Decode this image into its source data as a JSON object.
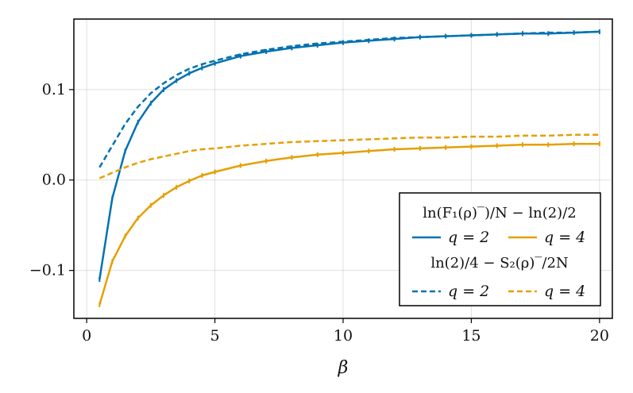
{
  "chart_data": {
    "type": "line",
    "xlabel": "β",
    "ylabel": "",
    "xlim": [
      -0.5,
      20.5
    ],
    "ylim": [
      -0.153,
      0.178
    ],
    "xticks": [
      0,
      5,
      10,
      15,
      20
    ],
    "yticks": [
      -0.1,
      0.0,
      0.1
    ],
    "x_tick_labels": [
      "0",
      "5",
      "10",
      "15",
      "20"
    ],
    "y_tick_labels": [
      "−0.1",
      "0.0",
      "0.1"
    ],
    "grid": true,
    "legend_position": "bottom-right",
    "legend": {
      "groups": [
        {
          "title": "ln(F₁(ρ)‾)/N − ln(2)/2",
          "entries": [
            "q = 2",
            "q = 4"
          ]
        },
        {
          "title": "ln(2)/4 − S₂(ρ)‾/2N",
          "entries": [
            "q = 2",
            "q = 4"
          ]
        }
      ]
    },
    "colors": {
      "q2": "#0072b2",
      "q4": "#e69f00"
    },
    "series": [
      {
        "name": "q = 2",
        "group": 0,
        "style": "solid",
        "color": "#0072b2",
        "x": [
          0.5,
          1,
          1.5,
          2,
          2.5,
          3,
          3.5,
          4,
          4.5,
          5,
          6,
          7,
          8,
          9,
          10,
          11,
          12,
          13,
          14,
          15,
          16,
          17,
          18,
          19,
          20
        ],
        "y": [
          -0.11,
          -0.02,
          0.032,
          0.064,
          0.085,
          0.1,
          0.11,
          0.118,
          0.124,
          0.129,
          0.137,
          0.142,
          0.146,
          0.149,
          0.152,
          0.154,
          0.156,
          0.158,
          0.159,
          0.16,
          0.161,
          0.162,
          0.162,
          0.163,
          0.164
        ]
      },
      {
        "name": "q = 4",
        "group": 0,
        "style": "solid",
        "color": "#e69f00",
        "x": [
          0.5,
          1,
          1.5,
          2,
          2.5,
          3,
          3.5,
          4,
          4.5,
          5,
          6,
          7,
          8,
          9,
          10,
          11,
          12,
          13,
          14,
          15,
          16,
          17,
          18,
          19,
          20
        ],
        "y": [
          -0.138,
          -0.09,
          -0.062,
          -0.042,
          -0.028,
          -0.017,
          -0.008,
          -0.001,
          0.005,
          0.009,
          0.016,
          0.021,
          0.025,
          0.028,
          0.03,
          0.032,
          0.034,
          0.035,
          0.036,
          0.037,
          0.038,
          0.039,
          0.039,
          0.04,
          0.04
        ]
      },
      {
        "name": "q = 2",
        "group": 1,
        "style": "dashed",
        "color": "#0072b2",
        "x": [
          0.5,
          1,
          1.5,
          2,
          2.5,
          3,
          3.5,
          4,
          4.5,
          5,
          6,
          7,
          8,
          9,
          10,
          11,
          12,
          13,
          14,
          15,
          16,
          17,
          18,
          19,
          20
        ],
        "y": [
          0.014,
          0.038,
          0.062,
          0.081,
          0.096,
          0.107,
          0.116,
          0.123,
          0.128,
          0.132,
          0.139,
          0.144,
          0.148,
          0.151,
          0.153,
          0.155,
          0.157,
          0.158,
          0.159,
          0.16,
          0.161,
          0.162,
          0.163,
          0.163,
          0.164
        ]
      },
      {
        "name": "q = 4",
        "group": 1,
        "style": "dashed",
        "color": "#e69f00",
        "x": [
          0.5,
          1,
          1.5,
          2,
          2.5,
          3,
          3.5,
          4,
          4.5,
          5,
          6,
          7,
          8,
          9,
          10,
          11,
          12,
          13,
          14,
          15,
          16,
          17,
          18,
          19,
          20
        ],
        "y": [
          0.002,
          0.008,
          0.014,
          0.019,
          0.023,
          0.026,
          0.029,
          0.032,
          0.034,
          0.035,
          0.038,
          0.04,
          0.042,
          0.043,
          0.044,
          0.045,
          0.046,
          0.047,
          0.047,
          0.048,
          0.048,
          0.049,
          0.049,
          0.05,
          0.05
        ]
      }
    ]
  }
}
